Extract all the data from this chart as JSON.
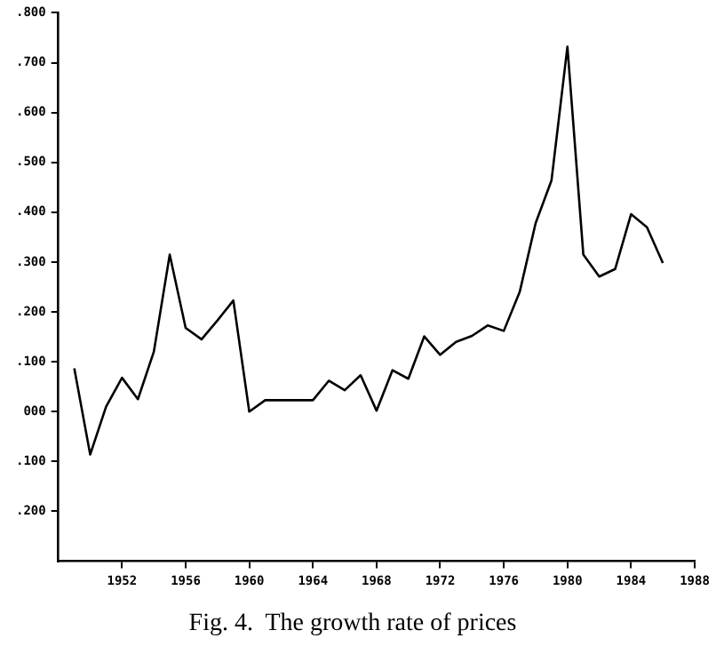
{
  "chart_data": {
    "type": "line",
    "title": "Fig. 4.  The growth rate of prices",
    "x": [
      1949,
      1950,
      1951,
      1952,
      1953,
      1954,
      1955,
      1956,
      1957,
      1958,
      1959,
      1960,
      1961,
      1962,
      1963,
      1964,
      1965,
      1966,
      1967,
      1968,
      1969,
      1970,
      1971,
      1972,
      1973,
      1974,
      1975,
      1976,
      1977,
      1978,
      1979,
      1980,
      1981,
      1982,
      1983,
      1984,
      1985,
      1986
    ],
    "series": [
      {
        "color": "#000000",
        "values": [
          0.087,
          -0.086,
          0.01,
          0.068,
          0.025,
          0.12,
          0.315,
          0.168,
          0.145,
          0.183,
          0.223,
          0.0,
          0.023,
          0.023,
          0.023,
          0.023,
          0.062,
          0.043,
          0.073,
          0.002,
          0.083,
          0.066,
          0.151,
          0.114,
          0.14,
          0.152,
          0.173,
          0.162,
          0.24,
          0.378,
          0.464,
          0.732,
          0.315,
          0.271,
          0.286,
          0.396,
          0.37,
          0.298
        ]
      }
    ],
    "xlim": [
      1948,
      1988
    ],
    "xticks": [
      1952,
      1956,
      1960,
      1964,
      1968,
      1972,
      1976,
      1980,
      1984,
      1988
    ],
    "ylim": [
      -0.3,
      0.8
    ],
    "yticks": [
      {
        "value": 0.8,
        "label": ".800"
      },
      {
        "value": 0.7,
        "label": ".700"
      },
      {
        "value": 0.6,
        "label": ".600"
      },
      {
        "value": 0.5,
        "label": ".500"
      },
      {
        "value": 0.4,
        "label": ".400"
      },
      {
        "value": 0.3,
        "label": ".300"
      },
      {
        "value": 0.2,
        "label": ".200"
      },
      {
        "value": 0.1,
        "label": ".100"
      },
      {
        "value": 0,
        "label": "000"
      },
      {
        "value": -0.1,
        "label": ".100"
      },
      {
        "value": -0.2,
        "label": ".200"
      }
    ],
    "grid": false,
    "legend": false,
    "marker": "none",
    "line_style": "solid"
  }
}
